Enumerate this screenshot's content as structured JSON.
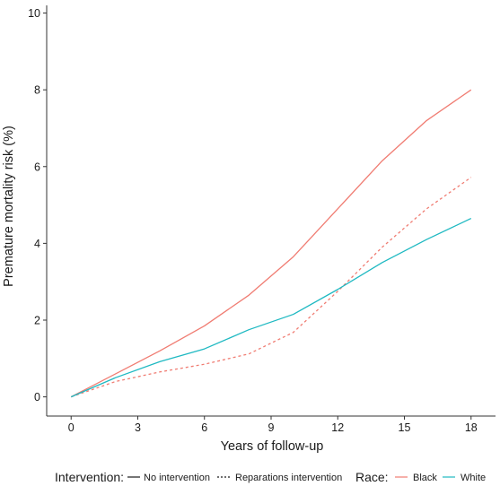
{
  "chart_data": {
    "type": "line",
    "xlabel": "Years of follow-up",
    "ylabel": "Premature mortality risk (%)",
    "xlim": [
      -1.1,
      19.1
    ],
    "ylim": [
      -0.5,
      10.2
    ],
    "xticks": [
      0,
      3,
      6,
      9,
      12,
      15,
      18
    ],
    "yticks": [
      0,
      2,
      4,
      6,
      8,
      10
    ],
    "grid": false,
    "legend_position": "bottom",
    "legend": {
      "intervention_title": "Intervention:",
      "intervention_items": [
        {
          "label": "No intervention",
          "dash": "solid"
        },
        {
          "label": "Reparations intervention",
          "dash": "dotted"
        }
      ],
      "race_title": "Race:",
      "race_items": [
        {
          "label": "Black",
          "color": "#f07c72"
        },
        {
          "label": "White",
          "color": "#1fb9c2"
        }
      ]
    },
    "series": [
      {
        "name": "Black",
        "intervention": "No intervention",
        "color": "#f07c72",
        "dash": "solid",
        "x": [
          0,
          2,
          4,
          6,
          8,
          10,
          12,
          14,
          16,
          18
        ],
        "y": [
          0,
          0.6,
          1.2,
          1.85,
          2.65,
          3.65,
          4.9,
          6.15,
          7.2,
          8.0
        ]
      },
      {
        "name": "Black",
        "intervention": "Reparations intervention",
        "color": "#f07c72",
        "dash": "dotted",
        "x": [
          0,
          2,
          4,
          6,
          8,
          10,
          12,
          14,
          16,
          18
        ],
        "y": [
          0,
          0.4,
          0.65,
          0.85,
          1.12,
          1.68,
          2.75,
          3.9,
          4.9,
          5.72
        ]
      },
      {
        "name": "White",
        "intervention": "No intervention",
        "color": "#1fb9c2",
        "dash": "solid",
        "x": [
          0,
          2,
          4,
          6,
          8,
          10,
          12,
          14,
          16,
          18
        ],
        "y": [
          0,
          0.5,
          0.92,
          1.25,
          1.75,
          2.15,
          2.8,
          3.5,
          4.1,
          4.65
        ]
      }
    ]
  }
}
